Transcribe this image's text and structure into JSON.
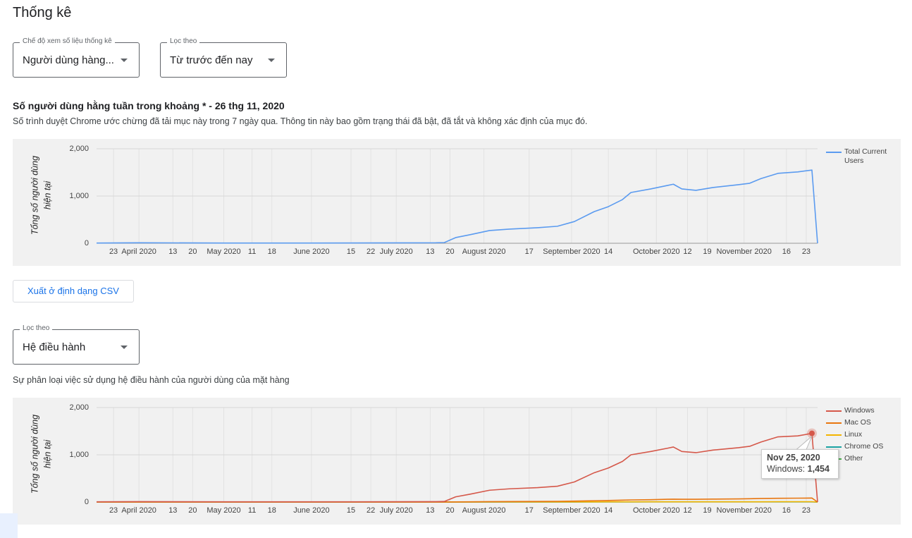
{
  "header": {
    "title": "Thống kê"
  },
  "filters": [
    {
      "label": "Chế độ xem số liệu thống kê",
      "value": "Người dùng hàng..."
    },
    {
      "label": "Lọc theo",
      "value": "Từ trước đến nay"
    }
  ],
  "users_section": {
    "title": "Số người dùng hằng tuần trong khoảng * - 26 thg 11, 2020",
    "description": "Số trình duyệt Chrome ước chừng đã tải mục này trong 7 ngày qua. Thông tin này bao gồm trạng thái đã bật, đã tắt và không xác định của mục đó."
  },
  "export_button": {
    "label": "Xuất ở định dạng CSV"
  },
  "os_filter": {
    "label": "Lọc theo",
    "value": "Hệ điều hành"
  },
  "os_section": {
    "description": "Sự phân loại việc sử dụng hệ điều hành của người dùng của mặt hàng"
  },
  "chart_data": [
    {
      "type": "line",
      "ylabel": [
        "Tổng số người dùng",
        "hiện tại"
      ],
      "legend": "right",
      "grid": true,
      "xlim": [
        "2020-03-17",
        "2020-11-27"
      ],
      "ylim": [
        0,
        2000
      ],
      "yticks": [
        0,
        {
          "value": 1000,
          "label": "1,000"
        },
        {
          "value": 2000,
          "label": "2,000"
        }
      ],
      "xticks": [
        {
          "value": "2020-03-23",
          "label": "23"
        },
        {
          "value": "2020-04-01",
          "label": "April 2020"
        },
        {
          "value": "2020-04-13",
          "label": "13"
        },
        {
          "value": "2020-04-20",
          "label": "20"
        },
        {
          "value": "2020-05-01",
          "label": "May 2020"
        },
        {
          "value": "2020-05-11",
          "label": "11"
        },
        {
          "value": "2020-05-18",
          "label": "18"
        },
        {
          "value": "2020-06-01",
          "label": "June 2020"
        },
        {
          "value": "2020-06-15",
          "label": "15"
        },
        {
          "value": "2020-06-22",
          "label": "22"
        },
        {
          "value": "2020-07-01",
          "label": "July 2020"
        },
        {
          "value": "2020-07-13",
          "label": "13"
        },
        {
          "value": "2020-07-20",
          "label": "20"
        },
        {
          "value": "2020-08-01",
          "label": "August 2020"
        },
        {
          "value": "2020-08-17",
          "label": "17"
        },
        {
          "value": "2020-09-01",
          "label": "September 2020"
        },
        {
          "value": "2020-09-14",
          "label": "14"
        },
        {
          "value": "2020-10-01",
          "label": "October 2020"
        },
        {
          "value": "2020-10-12",
          "label": "12"
        },
        {
          "value": "2020-10-19",
          "label": "19"
        },
        {
          "value": "2020-11-01",
          "label": "November 2020"
        },
        {
          "value": "2020-11-16",
          "label": "16"
        },
        {
          "value": "2020-11-23",
          "label": "23"
        }
      ],
      "x": [
        "2020-03-17",
        "2020-04-01",
        "2020-05-01",
        "2020-06-01",
        "2020-07-01",
        "2020-07-15",
        "2020-07-18",
        "2020-07-22",
        "2020-07-27",
        "2020-08-03",
        "2020-08-10",
        "2020-08-20",
        "2020-08-27",
        "2020-09-02",
        "2020-09-09",
        "2020-09-14",
        "2020-09-19",
        "2020-09-22",
        "2020-09-29",
        "2020-10-05",
        "2020-10-07",
        "2020-10-10",
        "2020-10-15",
        "2020-10-21",
        "2020-10-30",
        "2020-11-03",
        "2020-11-07",
        "2020-11-13",
        "2020-11-20",
        "2020-11-25",
        "2020-11-27"
      ],
      "series": [
        {
          "name": "Total Current Users",
          "color": "#5b9bf0",
          "values": [
            5,
            10,
            5,
            5,
            8,
            10,
            15,
            120,
            180,
            270,
            300,
            330,
            360,
            460,
            670,
            775,
            925,
            1075,
            1150,
            1225,
            1250,
            1150,
            1120,
            1180,
            1240,
            1270,
            1370,
            1480,
            1510,
            1550,
            0
          ]
        }
      ]
    },
    {
      "type": "line",
      "ylabel": [
        "Tổng số người dùng",
        "hiện tại"
      ],
      "legend": "right",
      "grid": true,
      "xlim": [
        "2020-03-17",
        "2020-11-27"
      ],
      "ylim": [
        0,
        2000
      ],
      "yticks": [
        0,
        {
          "value": 1000,
          "label": "1,000"
        },
        {
          "value": 2000,
          "label": "2,000"
        }
      ],
      "xticks": [
        {
          "value": "2020-03-23",
          "label": "23"
        },
        {
          "value": "2020-04-01",
          "label": "April 2020"
        },
        {
          "value": "2020-04-13",
          "label": "13"
        },
        {
          "value": "2020-04-20",
          "label": "20"
        },
        {
          "value": "2020-05-01",
          "label": "May 2020"
        },
        {
          "value": "2020-05-11",
          "label": "11"
        },
        {
          "value": "2020-05-18",
          "label": "18"
        },
        {
          "value": "2020-06-01",
          "label": "June 2020"
        },
        {
          "value": "2020-06-15",
          "label": "15"
        },
        {
          "value": "2020-06-22",
          "label": "22"
        },
        {
          "value": "2020-07-01",
          "label": "July 2020"
        },
        {
          "value": "2020-07-13",
          "label": "13"
        },
        {
          "value": "2020-07-20",
          "label": "20"
        },
        {
          "value": "2020-08-01",
          "label": "August 2020"
        },
        {
          "value": "2020-08-17",
          "label": "17"
        },
        {
          "value": "2020-09-01",
          "label": "September 2020"
        },
        {
          "value": "2020-09-14",
          "label": "14"
        },
        {
          "value": "2020-10-01",
          "label": "October 2020"
        },
        {
          "value": "2020-10-12",
          "label": "12"
        },
        {
          "value": "2020-10-19",
          "label": "19"
        },
        {
          "value": "2020-11-01",
          "label": "November 2020"
        },
        {
          "value": "2020-11-16",
          "label": "16"
        },
        {
          "value": "2020-11-23",
          "label": "23"
        }
      ],
      "x": [
        "2020-03-17",
        "2020-04-01",
        "2020-05-01",
        "2020-06-01",
        "2020-07-01",
        "2020-07-15",
        "2020-07-18",
        "2020-07-22",
        "2020-07-27",
        "2020-08-03",
        "2020-08-10",
        "2020-08-20",
        "2020-08-27",
        "2020-09-02",
        "2020-09-09",
        "2020-09-14",
        "2020-09-19",
        "2020-09-22",
        "2020-09-29",
        "2020-10-05",
        "2020-10-07",
        "2020-10-10",
        "2020-10-15",
        "2020-10-21",
        "2020-10-30",
        "2020-11-03",
        "2020-11-07",
        "2020-11-13",
        "2020-11-20",
        "2020-11-25",
        "2020-11-27"
      ],
      "series": [
        {
          "name": "Windows",
          "color": "#d5584a",
          "values": [
            5,
            8,
            4,
            4,
            6,
            8,
            12,
            110,
            165,
            250,
            280,
            305,
            335,
            425,
            620,
            720,
            860,
            1000,
            1070,
            1140,
            1165,
            1070,
            1045,
            1100,
            1150,
            1180,
            1270,
            1380,
            1400,
            1454,
            0
          ]
        },
        {
          "name": "Mac OS",
          "color": "#e8760f",
          "values": [
            0,
            0,
            0,
            0,
            0,
            1,
            1,
            3,
            5,
            8,
            10,
            12,
            15,
            20,
            28,
            32,
            40,
            45,
            50,
            58,
            60,
            58,
            58,
            62,
            66,
            70,
            75,
            80,
            82,
            85,
            0
          ]
        },
        {
          "name": "Linux",
          "color": "#f4b400",
          "values": [
            0,
            0,
            0,
            0,
            0,
            0,
            0,
            1,
            1,
            2,
            2,
            2,
            3,
            3,
            3,
            4,
            4,
            4,
            4,
            5,
            5,
            5,
            5,
            5,
            5,
            5,
            5,
            6,
            6,
            6,
            0
          ]
        },
        {
          "name": "Chrome OS",
          "color": "#1aa3a3",
          "values": [
            0,
            0,
            0,
            0,
            0,
            0,
            0,
            0,
            1,
            1,
            1,
            1,
            1,
            1,
            2,
            2,
            2,
            2,
            2,
            2,
            2,
            2,
            2,
            2,
            3,
            3,
            3,
            3,
            3,
            3,
            0
          ]
        },
        {
          "name": "Other",
          "color": "#4caf50",
          "values": [
            2,
            3,
            2,
            2,
            2,
            2,
            2,
            2,
            2,
            3,
            3,
            3,
            3,
            3,
            3,
            3,
            3,
            3,
            4,
            4,
            4,
            4,
            4,
            4,
            4,
            4,
            4,
            4,
            4,
            4,
            0
          ]
        }
      ],
      "tooltip": {
        "date": "Nov 25, 2020",
        "series_label": "Windows:",
        "value_label": "1,454"
      }
    }
  ]
}
